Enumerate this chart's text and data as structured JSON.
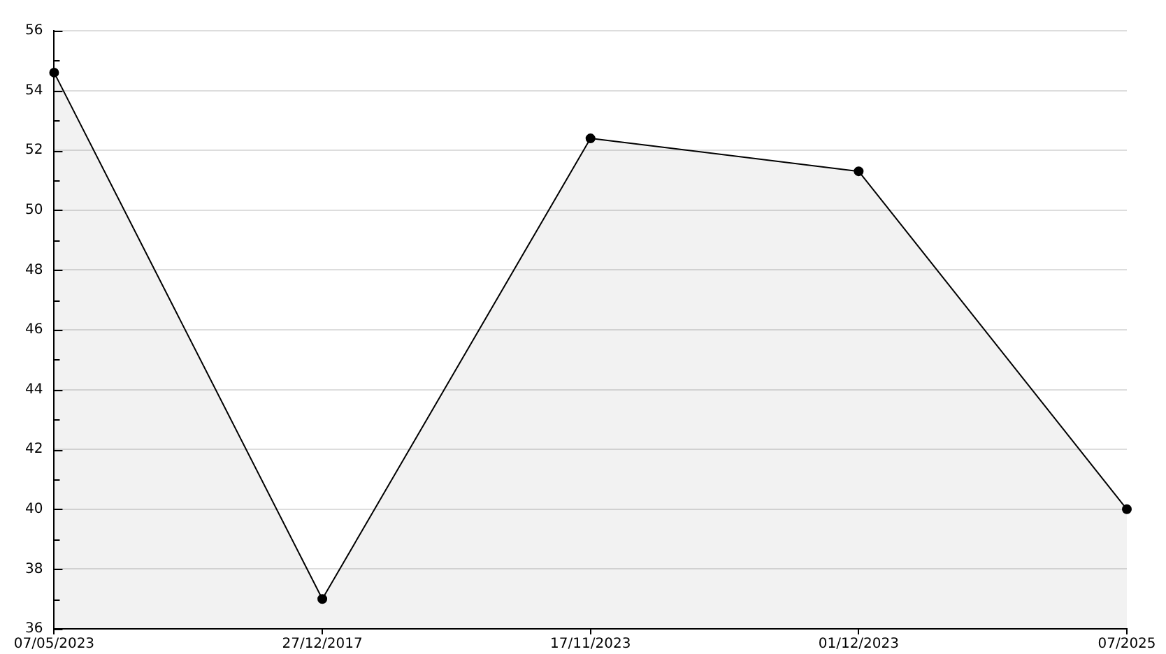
{
  "chart_data": {
    "type": "area",
    "categories": [
      "07/05/2023",
      "27/12/2017",
      "17/11/2023",
      "01/12/2023",
      "07/2025"
    ],
    "series": [
      {
        "color": "#000000",
        "values": [
          54.6,
          37.0,
          52.4,
          51.3,
          40.0
        ]
      }
    ],
    "ylim": [
      36,
      56
    ],
    "yticks": [
      36,
      {
        "value": 37,
        "label": null
      },
      38,
      {
        "value": 39,
        "label": null
      },
      40,
      {
        "value": 41,
        "label": null
      },
      42,
      {
        "value": 43,
        "label": null
      },
      44,
      {
        "value": 45,
        "label": null
      },
      46,
      {
        "value": 47,
        "label": null
      },
      48,
      {
        "value": 49,
        "label": null
      },
      50,
      {
        "value": 51,
        "label": null
      },
      52,
      {
        "value": 53,
        "label": null
      },
      54,
      {
        "value": 55,
        "label": null
      },
      56
    ],
    "grid": "y",
    "legend": false,
    "marker": "circle",
    "line_style": "solid"
  }
}
